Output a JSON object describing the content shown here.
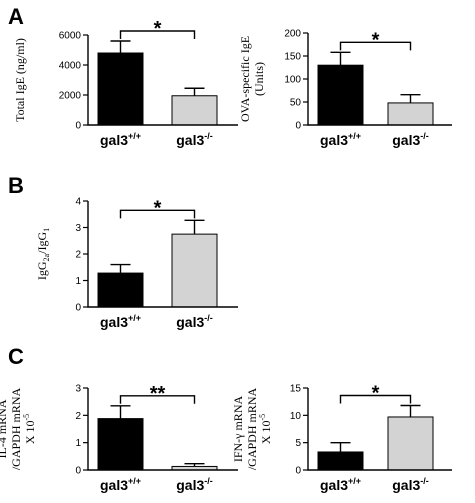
{
  "chart_data": [
    {
      "id": "A-left",
      "type": "bar",
      "panel": "A",
      "title": "",
      "ylabel_lines": [
        "Total  IgE (ng/ml)"
      ],
      "ylim": [
        0,
        6000
      ],
      "yticks": [
        0,
        2000,
        4000,
        6000
      ],
      "ytick_labels": [
        "0",
        "2000",
        "4000",
        "6000"
      ],
      "categories": [
        {
          "base": "gal3",
          "sup": "+/+"
        },
        {
          "base": "gal3",
          "sup": "-/-"
        }
      ],
      "values": [
        4800,
        1950
      ],
      "errors": [
        800,
        500
      ],
      "colors": [
        "#000000",
        "#d3d3d3"
      ],
      "significance": "*"
    },
    {
      "id": "A-right",
      "type": "bar",
      "panel": "",
      "title": "",
      "ylabel_lines": [
        "OVA-specific IgE",
        "(Units)"
      ],
      "ylim": [
        0,
        200
      ],
      "yticks": [
        0,
        50,
        100,
        150,
        200
      ],
      "ytick_labels": [
        "0",
        "50",
        "100",
        "150",
        "200"
      ],
      "categories": [
        {
          "base": "gal3",
          "sup": "+/+"
        },
        {
          "base": "gal3",
          "sup": "-/-"
        }
      ],
      "values": [
        130,
        48
      ],
      "errors": [
        28,
        18
      ],
      "colors": [
        "#000000",
        "#d3d3d3"
      ],
      "significance": "*"
    },
    {
      "id": "B",
      "type": "bar",
      "panel": "B",
      "title": "",
      "ylabel_lines": [
        "IgG2a/IgG1"
      ],
      "ylim": [
        0,
        4
      ],
      "yticks": [
        0,
        1,
        2,
        3,
        4
      ],
      "ytick_labels": [
        "0",
        "1",
        "2",
        "3",
        "4"
      ],
      "categories": [
        {
          "base": "gal3",
          "sup": "+/+"
        },
        {
          "base": "gal3",
          "sup": "-/-"
        }
      ],
      "values": [
        1.28,
        2.75
      ],
      "errors": [
        0.32,
        0.52
      ],
      "colors": [
        "#000000",
        "#d3d3d3"
      ],
      "significance": "*"
    },
    {
      "id": "C-left",
      "type": "bar",
      "panel": "C",
      "title": "",
      "ylabel_lines": [
        "IL-4 mRNA",
        "/GAPDH mRNA",
        "X 10-5"
      ],
      "ylim": [
        0,
        3
      ],
      "yticks": [
        0,
        1,
        2,
        3
      ],
      "ytick_labels": [
        "0",
        "1",
        "2",
        "3"
      ],
      "categories": [
        {
          "base": "gal3",
          "sup": "+/+"
        },
        {
          "base": "gal3",
          "sup": "-/-"
        }
      ],
      "values": [
        1.88,
        0.13
      ],
      "errors": [
        0.47,
        0.1
      ],
      "colors": [
        "#000000",
        "#d3d3d3"
      ],
      "significance": "**"
    },
    {
      "id": "C-right",
      "type": "bar",
      "panel": "",
      "title": "",
      "ylabel_lines": [
        "IFN-γ mRNA",
        "/GAPDH mRNA",
        "X 10-5"
      ],
      "ylim": [
        0,
        15
      ],
      "yticks": [
        0,
        5,
        10,
        15
      ],
      "ytick_labels": [
        "0",
        "5",
        "10",
        "15"
      ],
      "categories": [
        {
          "base": "gal3",
          "sup": "+/+"
        },
        {
          "base": "gal3",
          "sup": "-/-"
        }
      ],
      "values": [
        3.3,
        9.7
      ],
      "errors": [
        1.7,
        2.1
      ],
      "colors": [
        "#000000",
        "#d3d3d3"
      ],
      "significance": "*"
    }
  ]
}
